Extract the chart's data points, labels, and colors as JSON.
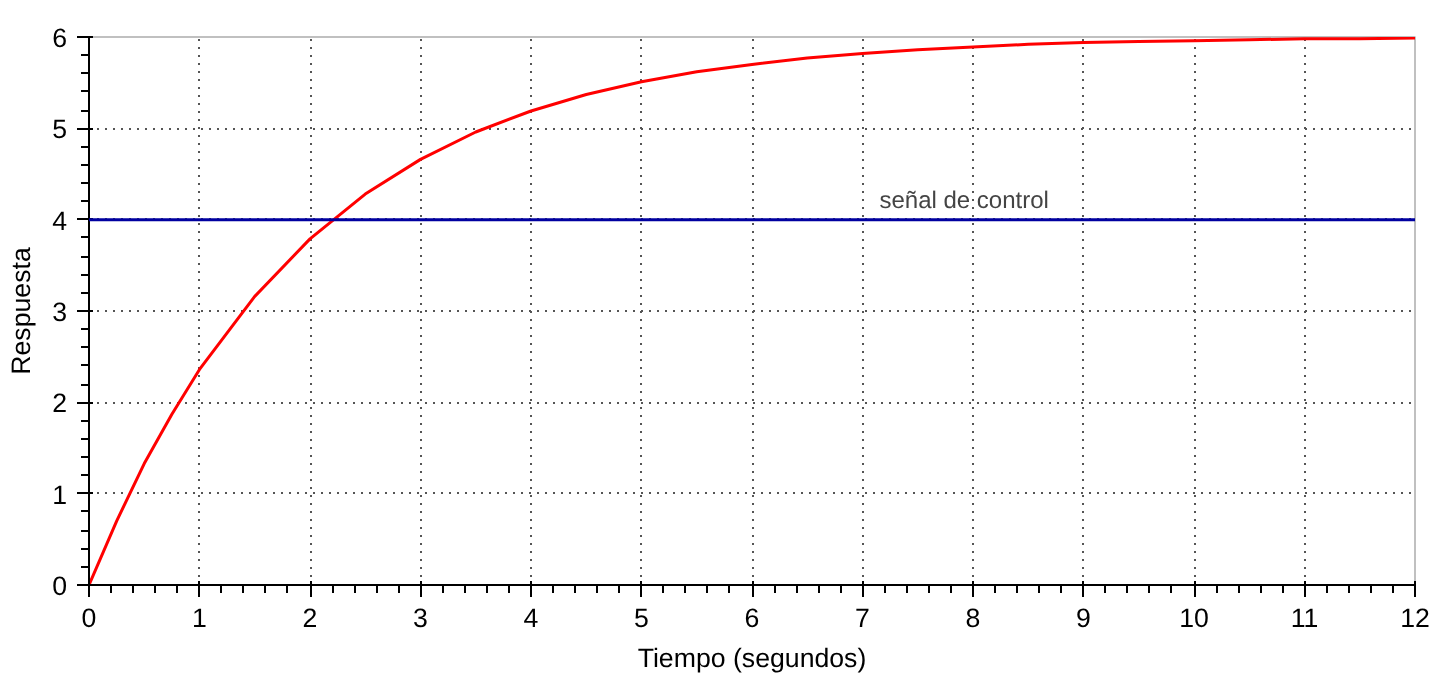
{
  "chart_data": {
    "type": "line",
    "xlabel": "Tiempo (segundos)",
    "ylabel": "Respuesta",
    "x": [
      0,
      0.25,
      0.5,
      0.75,
      1,
      1.5,
      2,
      2.5,
      3,
      3.5,
      4,
      4.5,
      5,
      5.5,
      6,
      6.5,
      7,
      7.5,
      8,
      8.5,
      9,
      9.5,
      10,
      10.5,
      11,
      11.5,
      12
    ],
    "series": [
      {
        "color": "#ff0000",
        "values": [
          0,
          0.7,
          1.33,
          1.87,
          2.36,
          3.16,
          3.79,
          4.28,
          4.66,
          4.96,
          5.19,
          5.37,
          5.51,
          5.62,
          5.7,
          5.77,
          5.82,
          5.86,
          5.89,
          5.92,
          5.94,
          5.95,
          5.96,
          5.97,
          5.98,
          5.98,
          5.99
        ]
      }
    ],
    "ref_lines": [
      {
        "axis": "y",
        "value": 4,
        "label": "señal de control",
        "color": "#0000a0",
        "line_style": "solid"
      }
    ],
    "xlim": [
      0,
      12
    ],
    "ylim": [
      0,
      6
    ],
    "xticks": [
      0,
      1,
      2,
      3,
      4,
      5,
      6,
      7,
      8,
      9,
      10,
      11,
      12
    ],
    "yticks": [
      0,
      1,
      2,
      3,
      4,
      5,
      6
    ],
    "grid": true,
    "marker": "none",
    "line_style": "solid"
  }
}
